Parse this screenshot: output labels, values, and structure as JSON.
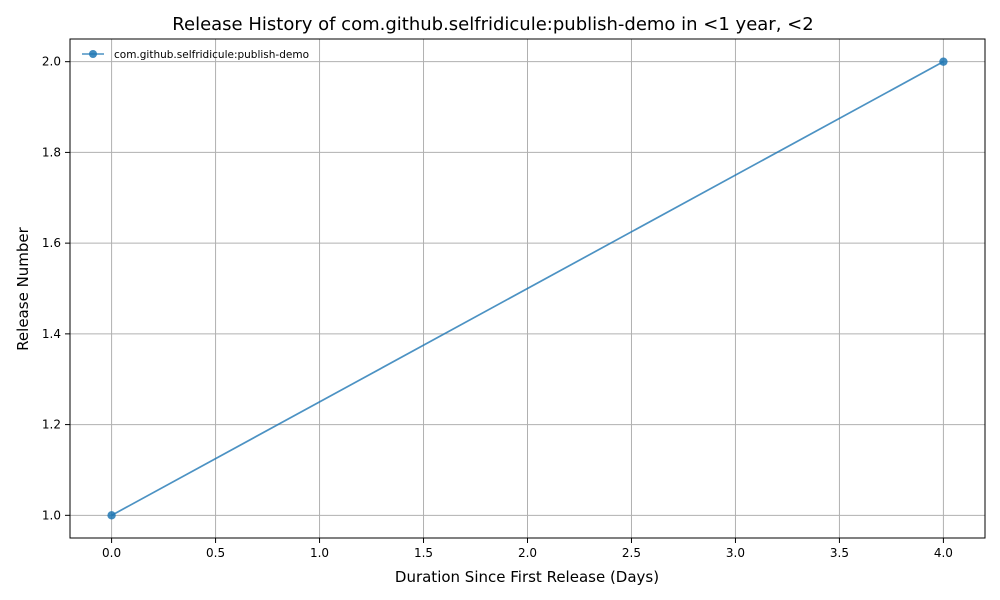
{
  "chart_data": {
    "type": "line",
    "title": "Release History of com.github.selfridicule:publish-demo in <1 year, <2",
    "xlabel": "Duration Since First Release (Days)",
    "ylabel": "Release Number",
    "xlim": [
      -0.2,
      4.2
    ],
    "ylim": [
      0.95,
      2.05
    ],
    "xticks": [
      0.0,
      0.5,
      1.0,
      1.5,
      2.0,
      2.5,
      3.0,
      3.5,
      4.0
    ],
    "yticks": [
      1.0,
      1.2,
      1.4,
      1.6,
      1.8,
      2.0
    ],
    "xtick_labels": [
      "0.0",
      "0.5",
      "1.0",
      "1.5",
      "2.0",
      "2.5",
      "3.0",
      "3.5",
      "4.0"
    ],
    "ytick_labels": [
      "1.0",
      "1.2",
      "1.4",
      "1.6",
      "1.8",
      "2.0"
    ],
    "grid": true,
    "legend_position": "top-left",
    "series": [
      {
        "name": "com.github.selfridicule:publish-demo",
        "color": "#1f77b4",
        "x": [
          0,
          4
        ],
        "y": [
          1,
          2
        ]
      }
    ]
  }
}
